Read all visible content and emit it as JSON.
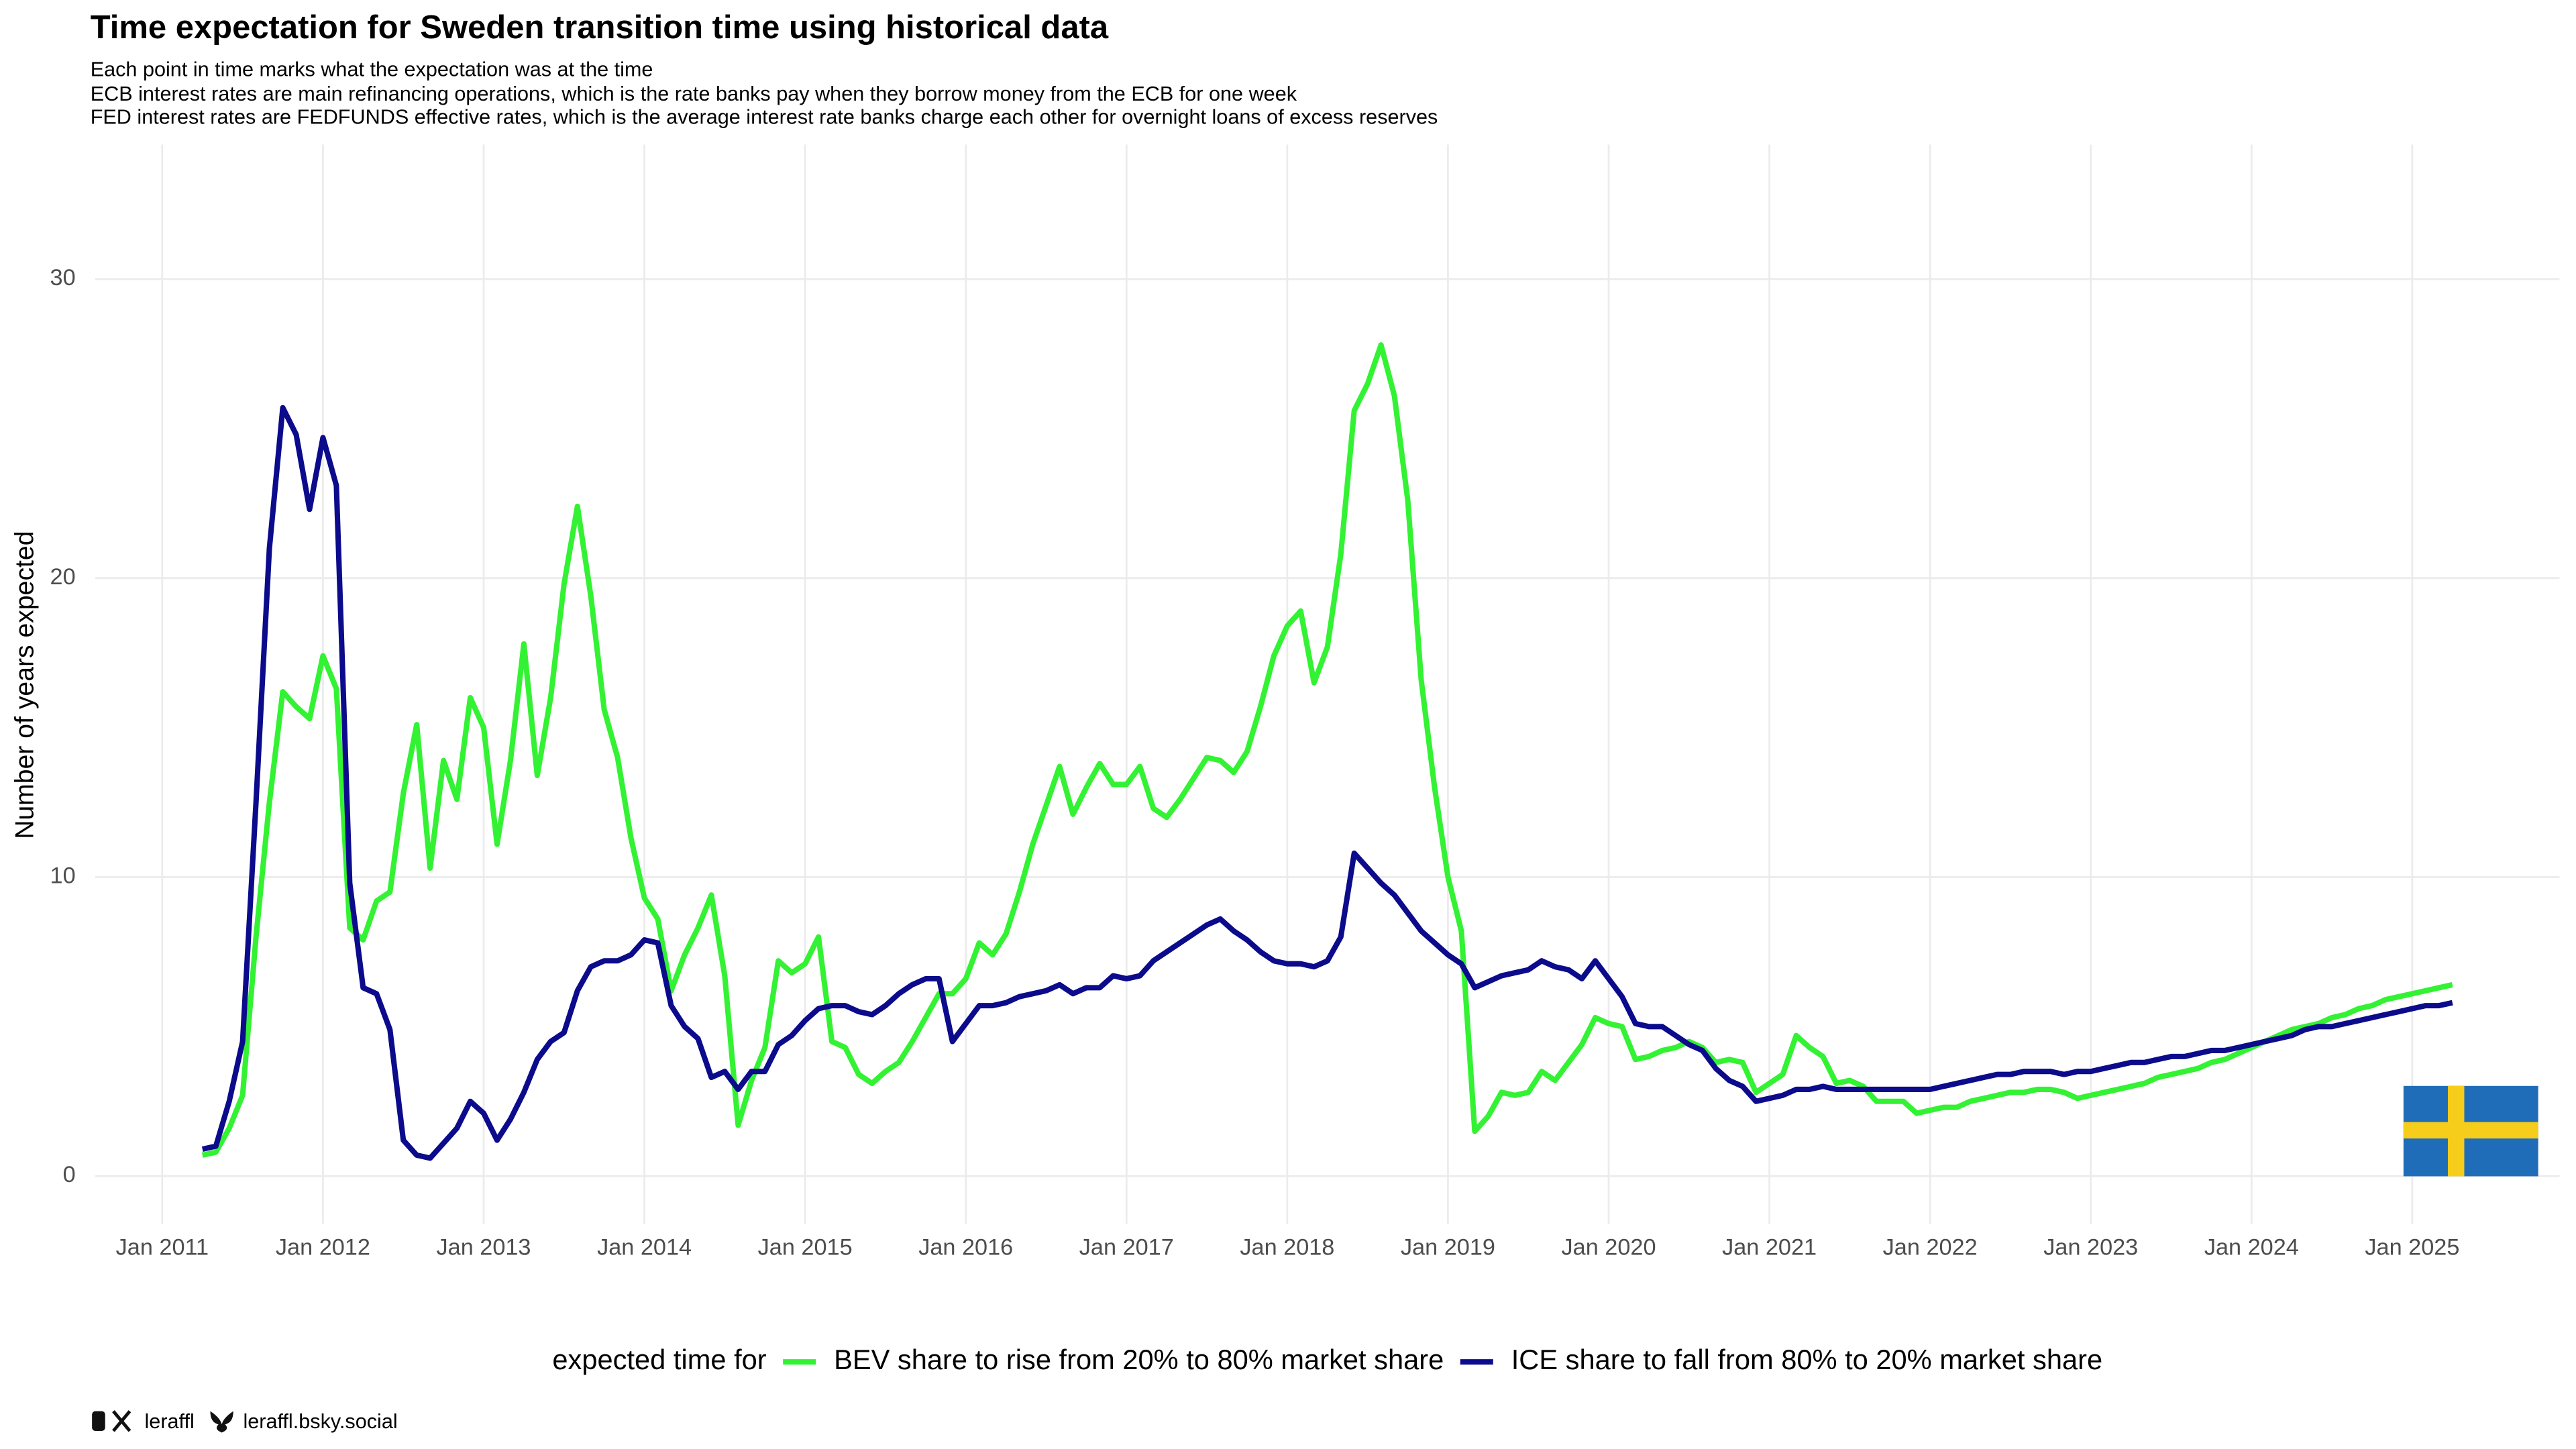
{
  "chart_data": {
    "type": "line",
    "title": "Time expectation for Sweden transition time using historical data",
    "subtitle": [
      "Each point in time marks what the expectation was at the time",
      "ECB interest rates are main refinancing operations, which is the rate banks pay when they borrow money from the ECB for one week",
      "FED interest rates are FEDFUNDS effective rates, which is the average interest rate banks charge each other for overnight loans of excess reserves"
    ],
    "y_label": "Number of years expected",
    "legend_title": "expected time for",
    "legend_position": "bottom",
    "grid": true,
    "footer": [
      "leraffl",
      "leraffl.bsky.social"
    ],
    "xlim": [
      "2010-08",
      "2025-12"
    ],
    "xticks": [
      {
        "value": "2011-01",
        "label": "Jan 2011"
      },
      {
        "value": "2012-01",
        "label": "Jan 2012"
      },
      {
        "value": "2013-01",
        "label": "Jan 2013"
      },
      {
        "value": "2014-01",
        "label": "Jan 2014"
      },
      {
        "value": "2015-01",
        "label": "Jan 2015"
      },
      {
        "value": "2016-01",
        "label": "Jan 2016"
      },
      {
        "value": "2017-01",
        "label": "Jan 2017"
      },
      {
        "value": "2018-01",
        "label": "Jan 2018"
      },
      {
        "value": "2019-01",
        "label": "Jan 2019"
      },
      {
        "value": "2020-01",
        "label": "Jan 2020"
      },
      {
        "value": "2021-01",
        "label": "Jan 2021"
      },
      {
        "value": "2022-01",
        "label": "Jan 2022"
      },
      {
        "value": "2023-01",
        "label": "Jan 2023"
      },
      {
        "value": "2024-01",
        "label": "Jan 2024"
      },
      {
        "value": "2025-01",
        "label": "Jan 2025"
      }
    ],
    "ylim": [
      -1.6,
      34.5
    ],
    "yticks": [
      0,
      10,
      20,
      30
    ],
    "x": [
      "2011-04",
      "2011-05",
      "2011-06",
      "2011-07",
      "2011-08",
      "2011-09",
      "2011-10",
      "2011-11",
      "2011-12",
      "2012-01",
      "2012-02",
      "2012-03",
      "2012-04",
      "2012-05",
      "2012-06",
      "2012-07",
      "2012-08",
      "2012-09",
      "2012-10",
      "2012-11",
      "2012-12",
      "2013-01",
      "2013-02",
      "2013-03",
      "2013-04",
      "2013-05",
      "2013-06",
      "2013-07",
      "2013-08",
      "2013-09",
      "2013-10",
      "2013-11",
      "2013-12",
      "2014-01",
      "2014-02",
      "2014-03",
      "2014-04",
      "2014-05",
      "2014-06",
      "2014-07",
      "2014-08",
      "2014-09",
      "2014-10",
      "2014-11",
      "2014-12",
      "2015-01",
      "2015-02",
      "2015-03",
      "2015-04",
      "2015-05",
      "2015-06",
      "2015-07",
      "2015-08",
      "2015-09",
      "2015-10",
      "2015-11",
      "2015-12",
      "2016-01",
      "2016-02",
      "2016-03",
      "2016-04",
      "2016-05",
      "2016-06",
      "2016-07",
      "2016-08",
      "2016-09",
      "2016-10",
      "2016-11",
      "2016-12",
      "2017-01",
      "2017-02",
      "2017-03",
      "2017-04",
      "2017-05",
      "2017-06",
      "2017-07",
      "2017-08",
      "2017-09",
      "2017-10",
      "2017-11",
      "2017-12",
      "2018-01",
      "2018-02",
      "2018-03",
      "2018-04",
      "2018-05",
      "2018-06",
      "2018-07",
      "2018-08",
      "2018-09",
      "2018-10",
      "2018-11",
      "2018-12",
      "2019-01",
      "2019-02",
      "2019-03",
      "2019-04",
      "2019-05",
      "2019-06",
      "2019-07",
      "2019-08",
      "2019-09",
      "2019-10",
      "2019-11",
      "2019-12",
      "2020-01",
      "2020-02",
      "2020-03",
      "2020-04",
      "2020-05",
      "2020-06",
      "2020-07",
      "2020-08",
      "2020-09",
      "2020-10",
      "2020-11",
      "2020-12",
      "2021-01",
      "2021-02",
      "2021-03",
      "2021-04",
      "2021-05",
      "2021-06",
      "2021-07",
      "2021-08",
      "2021-09",
      "2021-10",
      "2021-11",
      "2021-12",
      "2022-01",
      "2022-02",
      "2022-03",
      "2022-04",
      "2022-05",
      "2022-06",
      "2022-07",
      "2022-08",
      "2022-09",
      "2022-10",
      "2022-11",
      "2022-12",
      "2023-01",
      "2023-02",
      "2023-03",
      "2023-04",
      "2023-05",
      "2023-06",
      "2023-07",
      "2023-08",
      "2023-09",
      "2023-10",
      "2023-11",
      "2023-12",
      "2024-01",
      "2024-02",
      "2024-03",
      "2024-04",
      "2024-05",
      "2024-06",
      "2024-07",
      "2024-08",
      "2024-09",
      "2024-10",
      "2024-11",
      "2024-12",
      "2025-01",
      "2025-02",
      "2025-03",
      "2025-04"
    ],
    "series": [
      {
        "name": "BEV share to rise from 20% to 80% market share",
        "color": "#33f233",
        "values": [
          0.7,
          0.8,
          1.6,
          2.7,
          8,
          12.5,
          16.2,
          15.7,
          15.3,
          17.4,
          16.3,
          8.3,
          7.9,
          9.2,
          9.5,
          12.8,
          15.1,
          10.3,
          13.9,
          12.6,
          16,
          15,
          11.1,
          13.9,
          17.8,
          13.4,
          16,
          19.8,
          22.4,
          19.4,
          15.6,
          14,
          11.3,
          9.3,
          8.6,
          6.2,
          7.4,
          8.3,
          9.4,
          6.7,
          1.7,
          3.2,
          4.3,
          7.2,
          6.8,
          7.1,
          8,
          4.5,
          4.3,
          3.4,
          3.1,
          3.5,
          3.8,
          4.5,
          5.3,
          6.1,
          6.1,
          6.6,
          7.8,
          7.4,
          8.1,
          9.5,
          11.1,
          12.4,
          13.7,
          12.1,
          13,
          13.8,
          13.1,
          13.1,
          13.7,
          12.3,
          12,
          12.6,
          13.3,
          14,
          13.9,
          13.5,
          14.2,
          15.7,
          17.4,
          18.4,
          18.9,
          16.5,
          17.7,
          20.8,
          25.6,
          26.5,
          27.8,
          26.1,
          22.6,
          16.6,
          13,
          10,
          8.2,
          1.5,
          2,
          2.8,
          2.7,
          2.8,
          3.5,
          3.2,
          3.8,
          4.4,
          5.3,
          5.1,
          5,
          3.9,
          4,
          4.2,
          4.3,
          4.5,
          4.3,
          3.8,
          3.9,
          3.8,
          2.8,
          3.1,
          3.4,
          4.7,
          4.3,
          4,
          3.1,
          3.2,
          3,
          2.5,
          2.5,
          2.5,
          2.1,
          2.2,
          2.3,
          2.3,
          2.5,
          2.6,
          2.7,
          2.8,
          2.8,
          2.9,
          2.9,
          2.8,
          2.6,
          2.7,
          2.8,
          2.9,
          3,
          3.1,
          3.3,
          3.4,
          3.5,
          3.6,
          3.8,
          3.9,
          4.1,
          4.3,
          4.5,
          4.7,
          4.9,
          5,
          5.1,
          5.3,
          5.4,
          5.6,
          5.7,
          5.9,
          6,
          6.1,
          6.2,
          6.3,
          6.4
        ]
      },
      {
        "name": "ICE share to fall from 80% to 20% market share",
        "color": "#0b0b8c",
        "values": [
          0.9,
          1,
          2.5,
          4.5,
          12.5,
          21,
          25.7,
          24.8,
          22.3,
          24.7,
          23.1,
          9.8,
          6.3,
          6.1,
          4.9,
          1.2,
          0.7,
          0.6,
          1.1,
          1.6,
          2.5,
          2.1,
          1.2,
          1.9,
          2.8,
          3.9,
          4.5,
          4.8,
          6.2,
          7,
          7.2,
          7.2,
          7.4,
          7.9,
          7.8,
          5.7,
          5,
          4.6,
          3.3,
          3.5,
          2.9,
          3.5,
          3.5,
          4.4,
          4.7,
          5.2,
          5.6,
          5.7,
          5.7,
          5.5,
          5.4,
          5.7,
          6.1,
          6.4,
          6.6,
          6.6,
          4.5,
          5.1,
          5.7,
          5.7,
          5.8,
          6,
          6.1,
          6.2,
          6.4,
          6.1,
          6.3,
          6.3,
          6.7,
          6.6,
          6.7,
          7.2,
          7.5,
          7.8,
          8.1,
          8.4,
          8.6,
          8.2,
          7.9,
          7.5,
          7.2,
          7.1,
          7.1,
          7,
          7.2,
          8,
          10.8,
          10.3,
          9.8,
          9.4,
          8.8,
          8.2,
          7.8,
          7.4,
          7.1,
          6.3,
          6.5,
          6.7,
          6.8,
          6.9,
          7.2,
          7,
          6.9,
          6.6,
          7.2,
          6.6,
          6,
          5.1,
          5,
          5,
          4.7,
          4.4,
          4.2,
          3.6,
          3.2,
          3,
          2.5,
          2.6,
          2.7,
          2.9,
          2.9,
          3,
          2.9,
          2.9,
          2.9,
          2.9,
          2.9,
          2.9,
          2.9,
          2.9,
          3,
          3.1,
          3.2,
          3.3,
          3.4,
          3.4,
          3.5,
          3.5,
          3.5,
          3.4,
          3.5,
          3.5,
          3.6,
          3.7,
          3.8,
          3.8,
          3.9,
          4,
          4,
          4.1,
          4.2,
          4.2,
          4.3,
          4.4,
          4.5,
          4.6,
          4.7,
          4.9,
          5,
          5,
          5.1,
          5.2,
          5.3,
          5.4,
          5.5,
          5.6,
          5.7,
          5.7,
          5.8
        ]
      }
    ]
  }
}
